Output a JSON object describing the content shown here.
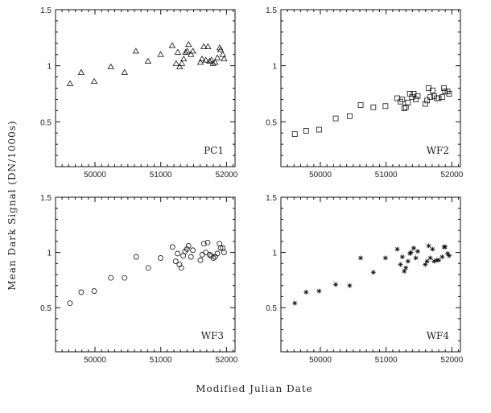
{
  "chart_data": [
    {
      "type": "scatter",
      "title": "PC1",
      "marker": "triangle",
      "xlim": [
        49400,
        52130
      ],
      "ylim": [
        0.1,
        1.5
      ],
      "xticks": [
        50000,
        51000,
        52000
      ],
      "xtick_labels": [
        "50000",
        "51000",
        "52000"
      ],
      "yticks": [
        0.5,
        1,
        1.5
      ],
      "ytick_labels": [
        "0.5",
        "1",
        "1.5"
      ],
      "x": [
        49620,
        49791,
        49988,
        50241,
        50450,
        50622,
        50806,
        50998,
        51174,
        51235,
        51260,
        51288,
        51321,
        51350,
        51378,
        51403,
        51423,
        51460,
        51489,
        51603,
        51628,
        51656,
        51685,
        51718,
        51742,
        51771,
        51795,
        51828,
        51861,
        51898,
        51910,
        51943,
        51963
      ],
      "y": [
        0.84,
        0.94,
        0.86,
        0.99,
        0.94,
        1.13,
        1.04,
        1.1,
        1.18,
        1.02,
        1.12,
        0.99,
        1.02,
        1.06,
        1.12,
        1.13,
        1.19,
        1.1,
        1.13,
        1.03,
        1.06,
        1.17,
        1.05,
        1.17,
        1.04,
        1.05,
        1.02,
        1.03,
        1.07,
        1.16,
        1.14,
        1.1,
        1.06
      ]
    },
    {
      "type": "scatter",
      "title": "WF2",
      "marker": "square",
      "xlim": [
        49400,
        52130
      ],
      "ylim": [
        0.1,
        1.5
      ],
      "xticks": [
        50000,
        51000,
        52000
      ],
      "xtick_labels": [
        "50000",
        "51000",
        "52000"
      ],
      "yticks": [
        0.5,
        1,
        1.5
      ],
      "ytick_labels": [
        "0.5",
        "1",
        "1.5"
      ],
      "x": [
        49611,
        49783,
        49980,
        50233,
        50446,
        50613,
        50806,
        50990,
        51170,
        51219,
        51247,
        51276,
        51300,
        51333,
        51362,
        51394,
        51419,
        51452,
        51481,
        51595,
        51624,
        51648,
        51673,
        51706,
        51730,
        51771,
        51800,
        51853,
        51881,
        51898,
        51935,
        51959
      ],
      "y": [
        0.39,
        0.42,
        0.43,
        0.53,
        0.55,
        0.65,
        0.63,
        0.64,
        0.71,
        0.68,
        0.7,
        0.62,
        0.63,
        0.67,
        0.75,
        0.72,
        0.75,
        0.7,
        0.73,
        0.66,
        0.69,
        0.8,
        0.72,
        0.78,
        0.73,
        0.71,
        0.71,
        0.72,
        0.8,
        0.77,
        0.77,
        0.75
      ]
    },
    {
      "type": "scatter",
      "title": "WF3",
      "marker": "circle",
      "xlim": [
        49400,
        52130
      ],
      "ylim": [
        0.1,
        1.5
      ],
      "xticks": [
        50000,
        51000,
        52000
      ],
      "xtick_labels": [
        "50000",
        "51000",
        "52000"
      ],
      "yticks": [
        0.5,
        1,
        1.5
      ],
      "ytick_labels": [
        "0.5",
        "1",
        "1.5"
      ],
      "x": [
        49620,
        49791,
        49988,
        50241,
        50450,
        50626,
        50810,
        50998,
        51178,
        51227,
        51256,
        51284,
        51313,
        51342,
        51370,
        51399,
        51423,
        51460,
        51489,
        51603,
        51632,
        51656,
        51685,
        51714,
        51742,
        51767,
        51800,
        51828,
        51861,
        51894,
        51910,
        51943,
        51963
      ],
      "y": [
        0.54,
        0.64,
        0.65,
        0.77,
        0.77,
        0.96,
        0.86,
        0.95,
        1.05,
        0.92,
        0.99,
        0.89,
        0.86,
        0.97,
        1.01,
        1.03,
        1.06,
        0.96,
        1.02,
        0.93,
        0.98,
        1.08,
        1.0,
        1.09,
        0.98,
        0.97,
        0.95,
        0.96,
        0.99,
        1.08,
        1.04,
        1.04,
        1.0
      ]
    },
    {
      "type": "scatter",
      "title": "WF4",
      "marker": "asterisk",
      "xlim": [
        49400,
        52130
      ],
      "ylim": [
        0.1,
        1.5
      ],
      "xticks": [
        50000,
        51000,
        52000
      ],
      "xtick_labels": [
        "50000",
        "51000",
        "52000"
      ],
      "yticks": [
        0.5,
        1,
        1.5
      ],
      "ytick_labels": [
        "0.5",
        "1",
        "1.5"
      ],
      "x": [
        49611,
        49783,
        49980,
        50233,
        50446,
        50613,
        50806,
        50990,
        51170,
        51219,
        51247,
        51276,
        51300,
        51333,
        51362,
        51378,
        51419,
        51452,
        51481,
        51595,
        51624,
        51648,
        51673,
        51706,
        51730,
        51771,
        51800,
        51853,
        51881,
        51898,
        51935,
        51959
      ],
      "y": [
        0.54,
        0.64,
        0.65,
        0.71,
        0.7,
        0.95,
        0.82,
        0.95,
        1.03,
        0.89,
        0.96,
        0.83,
        0.86,
        0.92,
        0.99,
        1.0,
        1.04,
        0.95,
        1.01,
        0.89,
        0.92,
        1.06,
        0.95,
        1.03,
        0.92,
        0.93,
        0.93,
        0.96,
        1.05,
        1.05,
        0.99,
        0.97
      ]
    }
  ],
  "shared": {
    "xlabel": "Modified Julian Date",
    "ylabel": "Mean Dark Signal (DN/1000s)"
  }
}
